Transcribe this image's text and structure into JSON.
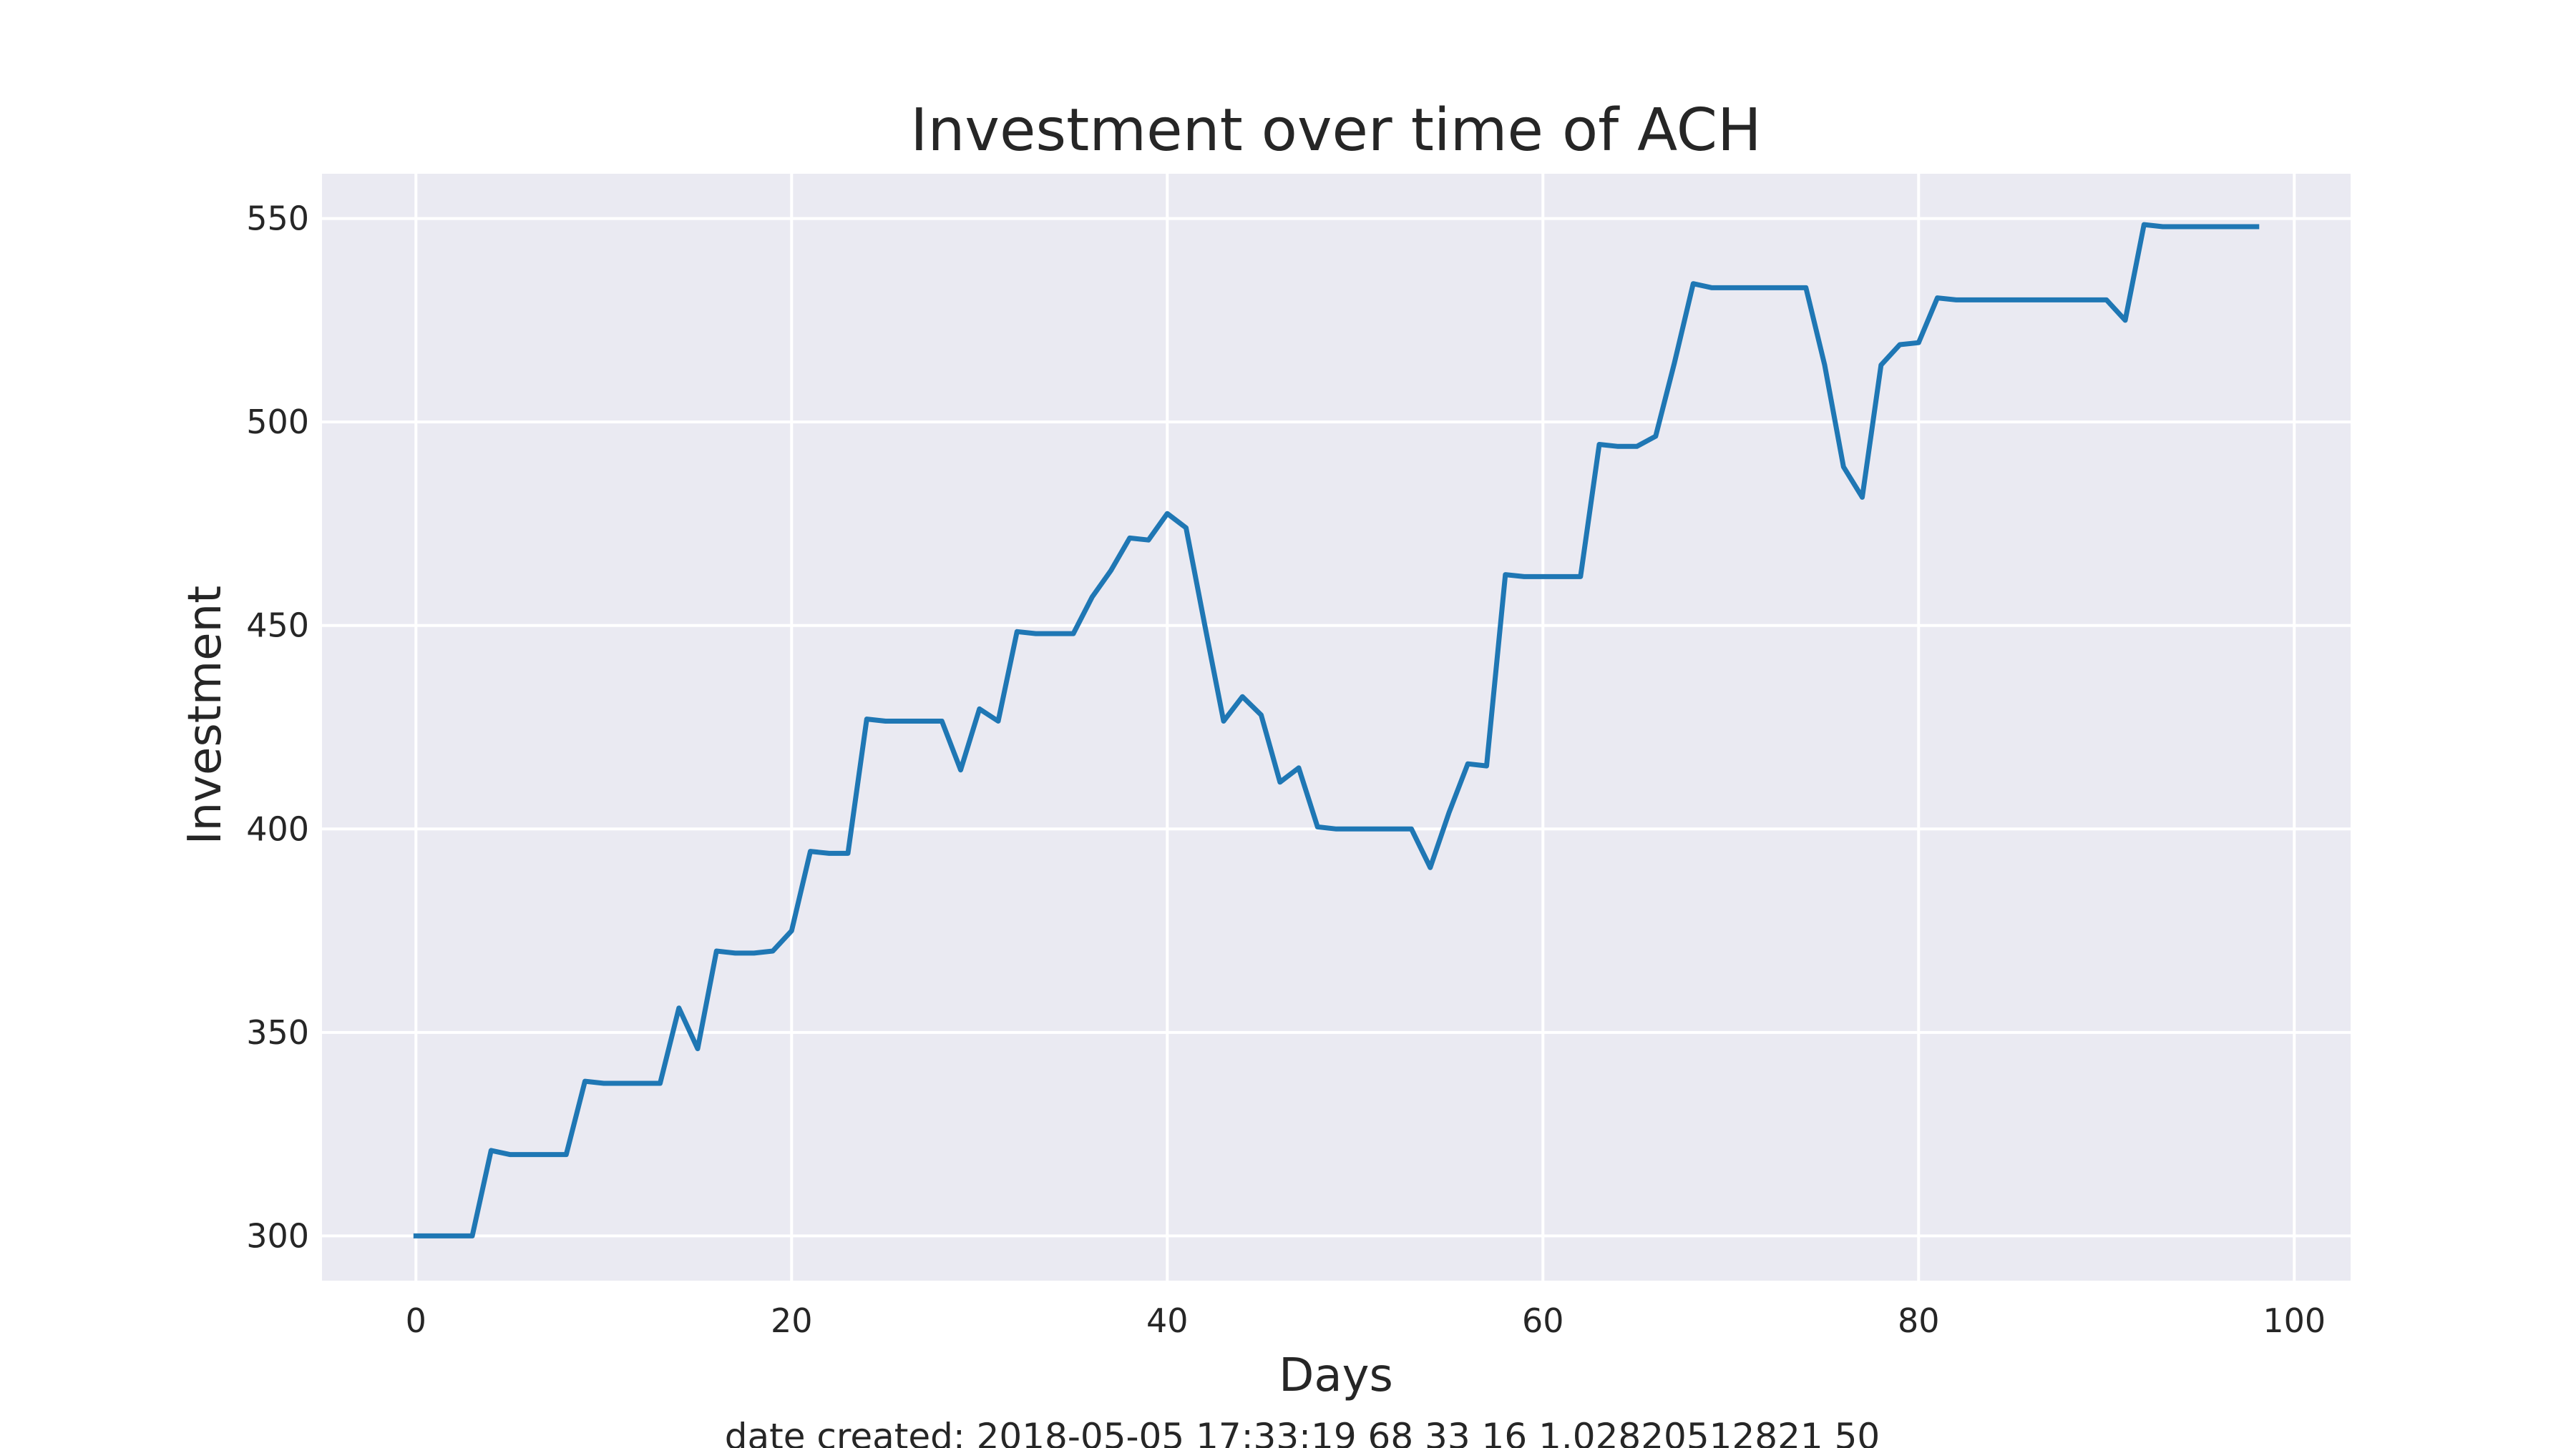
{
  "chart_data": {
    "type": "line",
    "title": "Investment over time of ACH",
    "xlabel": "Days",
    "ylabel": "Investment",
    "xlim": [
      -5,
      103
    ],
    "ylim": [
      289,
      561
    ],
    "xticks": [
      "0",
      "20",
      "40",
      "60",
      "80",
      "100"
    ],
    "yticks": [
      "300",
      "350",
      "400",
      "450",
      "500",
      "550"
    ],
    "grid": true,
    "legend": "none",
    "series": [
      {
        "color": "#1f77b4",
        "x": [
          0,
          1,
          2,
          3,
          4,
          5,
          6,
          7,
          8,
          9,
          10,
          11,
          12,
          13,
          14,
          15,
          16,
          17,
          18,
          19,
          20,
          21,
          22,
          23,
          24,
          25,
          26,
          27,
          28,
          29,
          30,
          31,
          32,
          33,
          34,
          35,
          36,
          37,
          38,
          39,
          40,
          41,
          42,
          43,
          44,
          45,
          46,
          47,
          48,
          49,
          50,
          51,
          52,
          53,
          54,
          55,
          56,
          57,
          58,
          59,
          60,
          61,
          62,
          63,
          64,
          65,
          66,
          67,
          68,
          69,
          70,
          71,
          72,
          73,
          74,
          75,
          76,
          77,
          78,
          79,
          80,
          81,
          82,
          83,
          84,
          85,
          86,
          87,
          88,
          89,
          90,
          91,
          92,
          93,
          94,
          95,
          96,
          97,
          98
        ],
        "y": [
          300,
          300,
          300,
          300,
          321,
          320,
          320,
          320,
          320,
          338,
          337.5,
          337.5,
          337.5,
          337.5,
          356,
          346,
          370,
          369.5,
          369.5,
          370,
          375,
          394.5,
          394,
          394,
          427,
          426.5,
          426.5,
          426.5,
          426.5,
          414.5,
          429.5,
          426.5,
          448.5,
          448,
          448,
          448,
          457,
          463.5,
          471.5,
          471,
          477.5,
          474,
          450,
          426.5,
          432.5,
          428,
          411.5,
          415,
          400.5,
          400,
          400,
          400,
          400,
          400,
          390.5,
          404,
          416,
          415.5,
          462.5,
          462,
          462,
          462,
          462,
          494.5,
          494,
          494,
          496.5,
          514.5,
          534,
          533,
          533,
          533,
          533,
          533,
          533,
          514,
          489,
          481.5,
          514,
          519,
          519.5,
          530.5,
          530,
          530,
          530,
          530,
          530,
          530,
          530,
          530,
          530,
          525,
          548.5,
          548,
          548,
          548,
          548,
          548,
          548
        ]
      }
    ],
    "caption": "date created: 2018-05-05 17:33:19 68 33 16 1.02820512821 50"
  }
}
